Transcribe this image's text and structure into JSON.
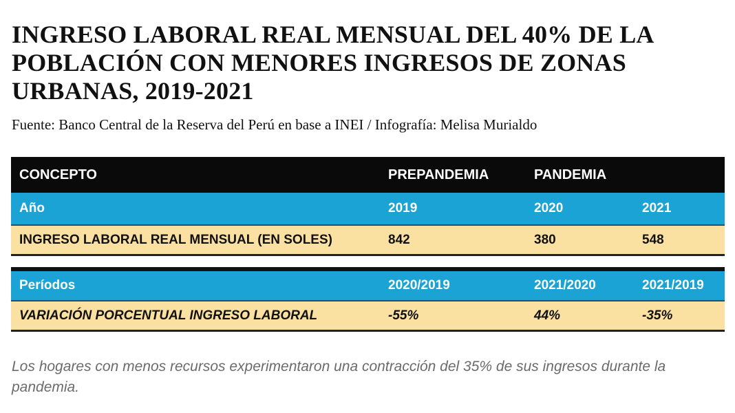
{
  "header": {
    "title": "INGRESO LABORAL REAL MENSUAL DEL 40% DE LA POBLACIÓN CON MENORES INGRESOS DE ZONAS URBANAS, 2019-2021",
    "source": "Fuente: Banco Central de la Reserva del Perú en base a INEI / Infografía: Melisa Murialdo"
  },
  "chart_data": {
    "type": "table",
    "columns": [
      "CONCEPTO",
      "PREPANDEMIA",
      "PANDEMIA",
      ""
    ],
    "rows": [
      [
        "Año",
        "2019",
        "2020",
        "2021"
      ],
      [
        "INGRESO LABORAL REAL MENSUAL (EN SOLES)",
        "842",
        "380",
        "548"
      ],
      [
        "Períodos",
        "2020/2019",
        "2021/2020",
        "2021/2019"
      ],
      [
        "VARIACIÓN PORCENTUAL INGRESO LABORAL",
        "-55%",
        "44%",
        "-35%"
      ]
    ],
    "colors": {
      "header": "#0a0a0a",
      "blue_rows": "#1aa3d4",
      "cream_rows": "#fbe1a1"
    }
  },
  "footer": {
    "note": "Los hogares con menos recursos experimentaron una contracción del 35% de sus ingresos durante la pandemia."
  }
}
